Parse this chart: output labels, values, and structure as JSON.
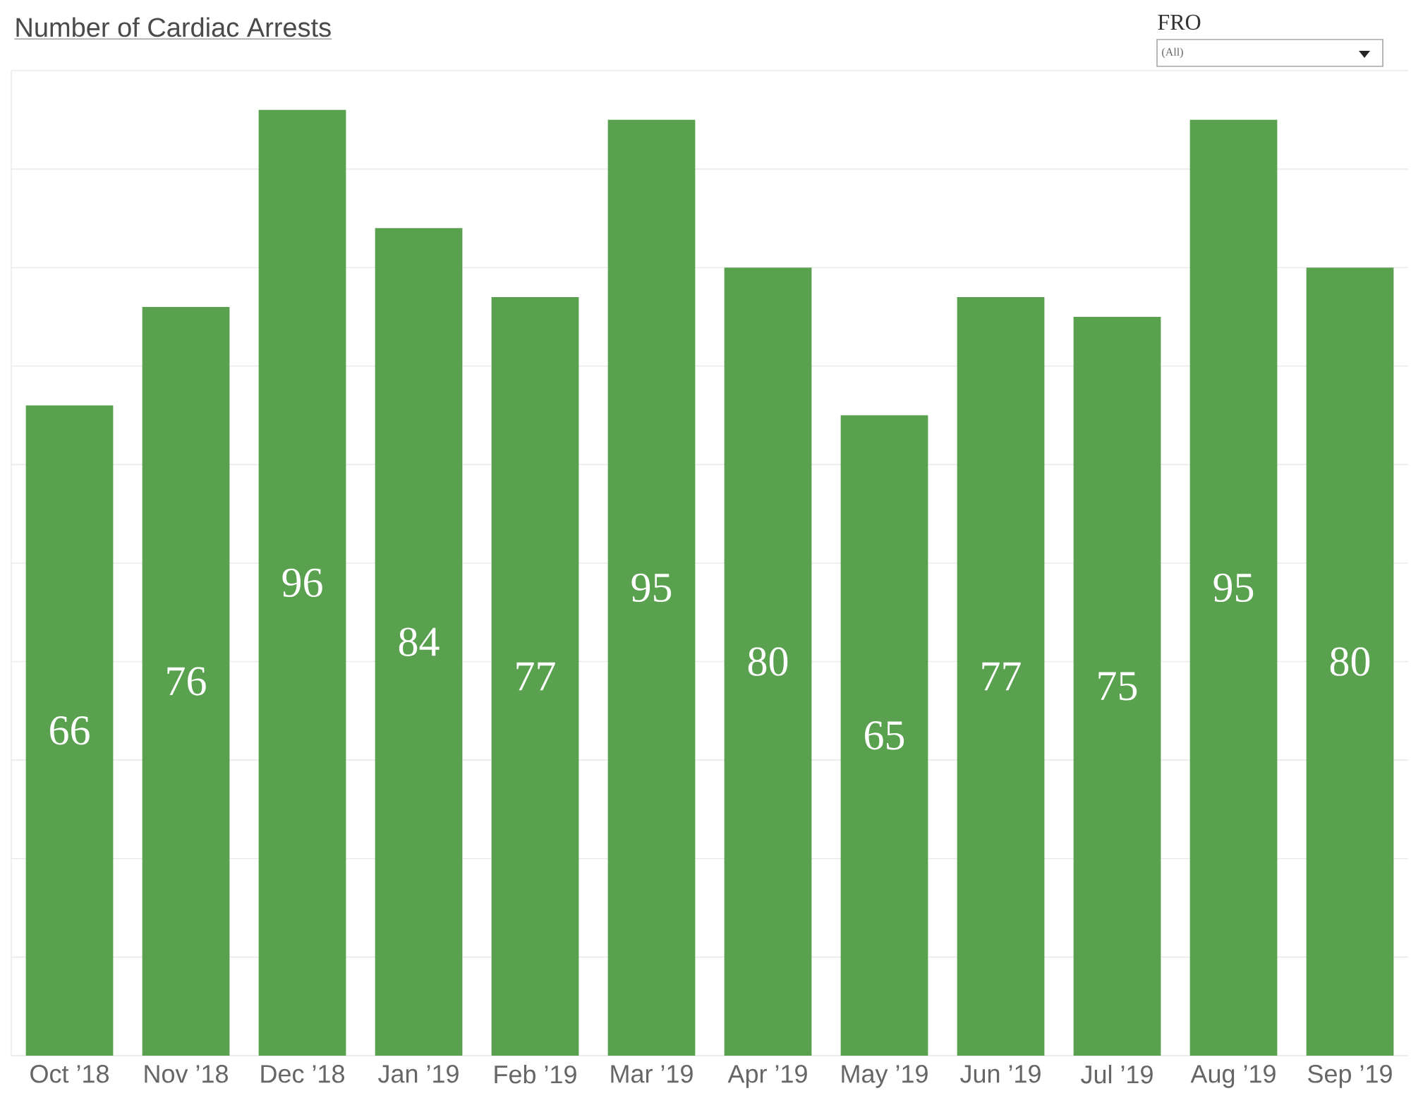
{
  "chart_data": {
    "type": "bar",
    "title": "Number of Cardiac Arrests",
    "categories": [
      "Oct ’18",
      "Nov ’18",
      "Dec ’18",
      "Jan ’19",
      "Feb ’19",
      "Mar ’19",
      "Apr ’19",
      "May ’19",
      "Jun ’19",
      "Jul ’19",
      "Aug ’19",
      "Sep ’19"
    ],
    "values": [
      66,
      76,
      96,
      84,
      77,
      95,
      80,
      65,
      77,
      75,
      95,
      80
    ],
    "color": "#59a14f",
    "data_labels": true,
    "ylim": [
      0,
      100
    ],
    "yticks": [
      {
        "value": 0,
        "label": null
      },
      {
        "value": 10,
        "label": null
      },
      {
        "value": 20,
        "label": null
      },
      {
        "value": 30,
        "label": null
      },
      {
        "value": 40,
        "label": null
      },
      {
        "value": 50,
        "label": null
      },
      {
        "value": 60,
        "label": null
      },
      {
        "value": 70,
        "label": null
      },
      {
        "value": 80,
        "label": null
      },
      {
        "value": 90,
        "label": null
      },
      {
        "value": 100,
        "label": null
      }
    ],
    "grid": "y",
    "tick_labels": "x",
    "annotations": [
      "FRO",
      "(All)"
    ]
  }
}
